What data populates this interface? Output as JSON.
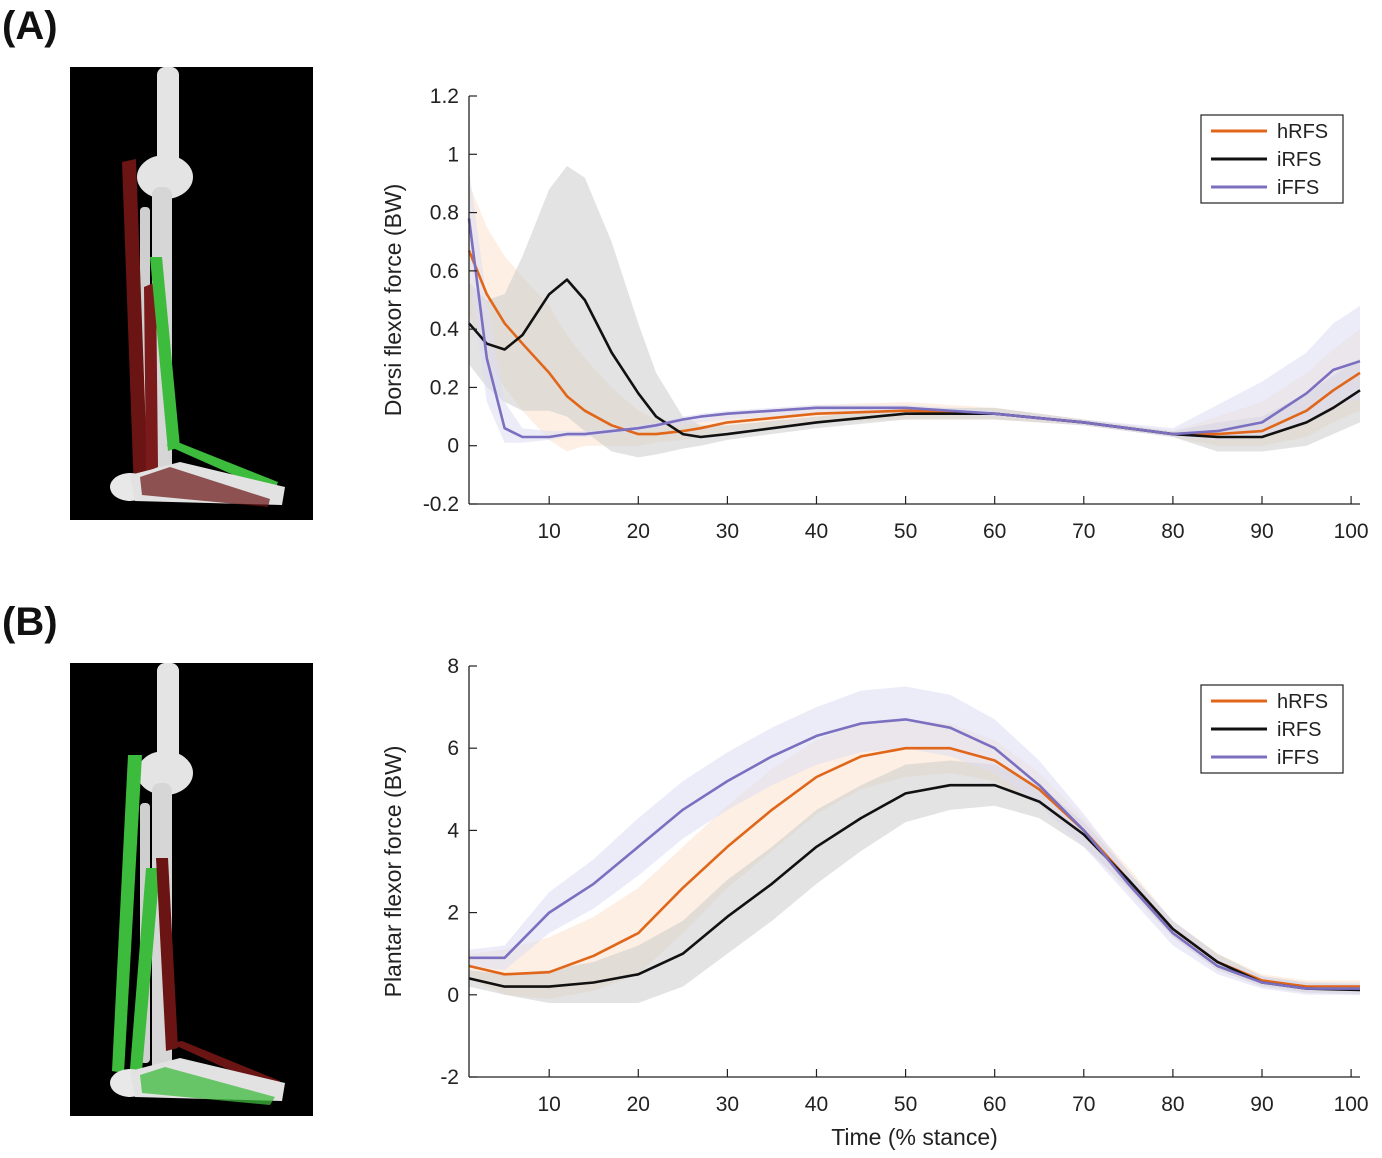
{
  "panels": [
    {
      "label": "(A)"
    },
    {
      "label": "(B)"
    }
  ],
  "colors": {
    "hRFS": "#e0661a",
    "iRFS": "#111111",
    "iFFS": "#7b6fc0",
    "hRFS_band": "#fbe2cc",
    "iRFS_band": "#cccccc",
    "iFFS_band": "#dcdcf4",
    "image_bg": "#000000",
    "muscle_green": "#3dbb3d",
    "muscle_red": "#6b1414",
    "bone": "#e4e4e4"
  },
  "chart_data": [
    {
      "type": "line",
      "xlabel": "",
      "ylabel": "Dorsi flexor force (BW)",
      "xlim": [
        1,
        101
      ],
      "ylim": [
        -0.2,
        1.2
      ],
      "xticks": [
        10,
        20,
        30,
        40,
        50,
        60,
        70,
        80,
        90,
        100
      ],
      "yticks": [
        -0.2,
        0,
        0.2,
        0.4,
        0.6,
        0.8,
        1,
        1.2
      ],
      "legend_position": "top-right",
      "legend": [
        "hRFS",
        "iRFS",
        "iFFS"
      ],
      "x": [
        1,
        3,
        5,
        7,
        10,
        12,
        14,
        17,
        20,
        22,
        25,
        27,
        30,
        40,
        50,
        60,
        70,
        80,
        85,
        90,
        95,
        98,
        101
      ],
      "series": [
        {
          "name": "hRFS",
          "color_key": "hRFS",
          "band_key": "hRFS_band",
          "values": [
            0.67,
            0.52,
            0.42,
            0.35,
            0.25,
            0.17,
            0.12,
            0.07,
            0.04,
            0.04,
            0.05,
            0.06,
            0.08,
            0.11,
            0.12,
            0.11,
            0.08,
            0.04,
            0.04,
            0.05,
            0.12,
            0.19,
            0.25
          ],
          "lower": [
            0.45,
            0.3,
            0.2,
            0.12,
            0.02,
            -0.02,
            0.0,
            0.0,
            0.0,
            0.01,
            0.02,
            0.03,
            0.05,
            0.08,
            0.09,
            0.09,
            0.07,
            0.03,
            0.0,
            0.0,
            0.03,
            0.08,
            0.12
          ],
          "upper": [
            0.9,
            0.75,
            0.65,
            0.58,
            0.48,
            0.38,
            0.3,
            0.2,
            0.12,
            0.09,
            0.09,
            0.09,
            0.11,
            0.14,
            0.15,
            0.13,
            0.09,
            0.05,
            0.1,
            0.15,
            0.25,
            0.33,
            0.4
          ]
        },
        {
          "name": "iRFS",
          "color_key": "iRFS",
          "band_key": "iRFS_band",
          "values": [
            0.42,
            0.35,
            0.33,
            0.38,
            0.52,
            0.57,
            0.5,
            0.32,
            0.18,
            0.1,
            0.04,
            0.03,
            0.04,
            0.08,
            0.11,
            0.11,
            0.08,
            0.04,
            0.03,
            0.03,
            0.08,
            0.13,
            0.19
          ],
          "lower": [
            0.28,
            0.2,
            0.15,
            0.12,
            0.12,
            0.1,
            0.05,
            -0.02,
            -0.04,
            -0.03,
            -0.01,
            0.0,
            0.02,
            0.06,
            0.09,
            0.09,
            0.07,
            0.03,
            -0.02,
            -0.02,
            0.0,
            0.04,
            0.08
          ],
          "upper": [
            0.56,
            0.5,
            0.52,
            0.65,
            0.88,
            0.96,
            0.92,
            0.7,
            0.42,
            0.25,
            0.1,
            0.07,
            0.07,
            0.1,
            0.13,
            0.13,
            0.09,
            0.05,
            0.08,
            0.1,
            0.18,
            0.24,
            0.3
          ]
        },
        {
          "name": "iFFS",
          "color_key": "iFFS",
          "band_key": "iFFS_band",
          "values": [
            0.78,
            0.3,
            0.06,
            0.03,
            0.03,
            0.04,
            0.04,
            0.05,
            0.06,
            0.07,
            0.09,
            0.1,
            0.11,
            0.13,
            0.13,
            0.11,
            0.08,
            0.04,
            0.05,
            0.08,
            0.18,
            0.26,
            0.29
          ],
          "lower": [
            0.6,
            0.15,
            0.01,
            0.01,
            0.02,
            0.03,
            0.03,
            0.04,
            0.05,
            0.06,
            0.07,
            0.08,
            0.09,
            0.11,
            0.12,
            0.1,
            0.07,
            0.03,
            0.02,
            0.03,
            0.08,
            0.14,
            0.16
          ],
          "upper": [
            0.95,
            0.5,
            0.15,
            0.06,
            0.05,
            0.05,
            0.05,
            0.06,
            0.07,
            0.08,
            0.1,
            0.11,
            0.12,
            0.14,
            0.14,
            0.12,
            0.09,
            0.06,
            0.14,
            0.22,
            0.32,
            0.42,
            0.48
          ]
        }
      ]
    },
    {
      "type": "line",
      "xlabel": "Time (% stance)",
      "ylabel": "Plantar flexor force (BW)",
      "xlim": [
        1,
        101
      ],
      "ylim": [
        -2,
        8
      ],
      "xticks": [
        10,
        20,
        30,
        40,
        50,
        60,
        70,
        80,
        90,
        100
      ],
      "yticks": [
        -2,
        0,
        2,
        4,
        6,
        8
      ],
      "legend_position": "top-right",
      "legend": [
        "hRFS",
        "iRFS",
        "iFFS"
      ],
      "x": [
        1,
        5,
        10,
        15,
        20,
        25,
        30,
        35,
        40,
        45,
        50,
        55,
        60,
        65,
        70,
        75,
        80,
        85,
        90,
        95,
        101
      ],
      "series": [
        {
          "name": "hRFS",
          "color_key": "hRFS",
          "band_key": "hRFS_band",
          "values": [
            0.7,
            0.5,
            0.55,
            0.95,
            1.5,
            2.6,
            3.6,
            4.5,
            5.3,
            5.8,
            6.0,
            6.0,
            5.7,
            5.0,
            4.0,
            2.8,
            1.6,
            0.8,
            0.35,
            0.2,
            0.2
          ],
          "lower": [
            0.4,
            0.0,
            -0.1,
            0.1,
            0.5,
            1.5,
            2.6,
            3.5,
            4.4,
            5.0,
            5.3,
            5.4,
            5.2,
            4.6,
            3.7,
            2.5,
            1.4,
            0.6,
            0.2,
            0.05,
            0.05
          ],
          "upper": [
            1.0,
            1.1,
            1.4,
            1.9,
            2.6,
            3.6,
            4.6,
            5.5,
            6.2,
            6.6,
            6.7,
            6.6,
            6.2,
            5.4,
            4.3,
            3.1,
            1.8,
            1.0,
            0.5,
            0.35,
            0.35
          ]
        },
        {
          "name": "iRFS",
          "color_key": "iRFS",
          "band_key": "iRFS_band",
          "values": [
            0.4,
            0.2,
            0.2,
            0.3,
            0.5,
            1.0,
            1.9,
            2.7,
            3.6,
            4.3,
            4.9,
            5.1,
            5.1,
            4.7,
            3.9,
            2.8,
            1.6,
            0.8,
            0.3,
            0.15,
            0.12
          ],
          "lower": [
            0.2,
            0.0,
            -0.2,
            -0.2,
            -0.2,
            0.2,
            1.0,
            1.8,
            2.7,
            3.5,
            4.2,
            4.5,
            4.6,
            4.3,
            3.6,
            2.6,
            1.4,
            0.6,
            0.2,
            0.05,
            0.0
          ],
          "upper": [
            0.6,
            0.5,
            0.6,
            0.8,
            1.2,
            1.8,
            2.8,
            3.6,
            4.5,
            5.1,
            5.6,
            5.7,
            5.6,
            5.1,
            4.2,
            3.0,
            1.8,
            1.0,
            0.45,
            0.3,
            0.25
          ]
        },
        {
          "name": "iFFS",
          "color_key": "iFFS",
          "band_key": "iFFS_band",
          "values": [
            0.9,
            0.9,
            2.0,
            2.7,
            3.6,
            4.5,
            5.2,
            5.8,
            6.3,
            6.6,
            6.7,
            6.5,
            6.0,
            5.1,
            4.0,
            2.7,
            1.5,
            0.7,
            0.3,
            0.15,
            0.15
          ],
          "lower": [
            0.7,
            0.6,
            1.5,
            2.1,
            2.9,
            3.8,
            4.5,
            5.1,
            5.6,
            5.9,
            6.0,
            5.8,
            5.4,
            4.6,
            3.6,
            2.4,
            1.2,
            0.5,
            0.15,
            0.0,
            0.0
          ],
          "upper": [
            1.1,
            1.2,
            2.5,
            3.3,
            4.3,
            5.2,
            5.9,
            6.5,
            7.0,
            7.4,
            7.5,
            7.3,
            6.7,
            5.7,
            4.4,
            3.0,
            1.8,
            0.9,
            0.45,
            0.3,
            0.3
          ]
        }
      ]
    }
  ]
}
